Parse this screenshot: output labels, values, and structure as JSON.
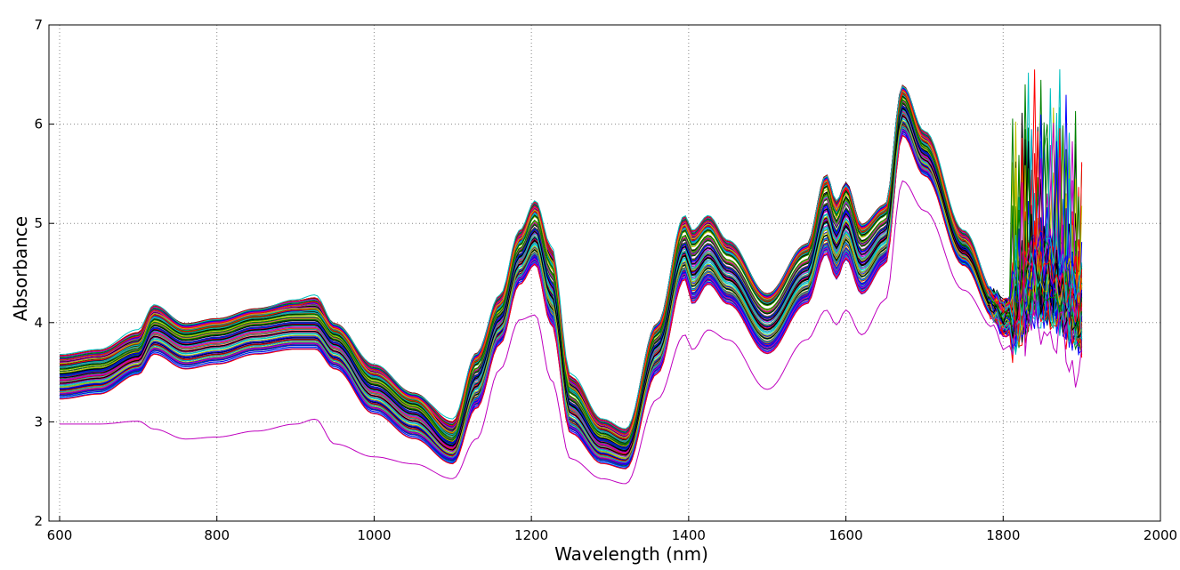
{
  "chart_data": {
    "type": "line",
    "title": "",
    "xlabel": "Wavelength (nm)",
    "ylabel": "Absorbance",
    "xlim": [
      600,
      2000
    ],
    "ylim": [
      2,
      7
    ],
    "x_ticks": [
      600,
      800,
      1000,
      1200,
      1400,
      1600,
      1800,
      2000
    ],
    "y_ticks": [
      2,
      3,
      4,
      5,
      6,
      7
    ],
    "x_tick_labels": [
      "600",
      "800",
      "1000",
      "1200",
      "1400",
      "1600",
      "1800",
      "2000"
    ],
    "y_tick_labels": [
      "2",
      "3",
      "4",
      "5",
      "6",
      "7"
    ],
    "grid": true,
    "legend": "none",
    "series_count": 180,
    "colors": [
      "#0000ff",
      "#008000",
      "#ff0000",
      "#00bfbf",
      "#bf00bf",
      "#bfbf00",
      "#000000"
    ],
    "wavelength_nm": [
      600,
      650,
      700,
      720,
      760,
      800,
      850,
      900,
      925,
      950,
      1000,
      1050,
      1100,
      1130,
      1160,
      1185,
      1205,
      1225,
      1250,
      1290,
      1320,
      1360,
      1395,
      1405,
      1425,
      1450,
      1500,
      1550,
      1575,
      1588,
      1600,
      1620,
      1650,
      1672,
      1700,
      1750,
      1790,
      1800,
      1850,
      1900
    ],
    "representative_series": [
      {
        "values": [
          3.55,
          3.6,
          3.75,
          4.05,
          3.9,
          3.95,
          4.05,
          4.1,
          4.1,
          3.9,
          3.45,
          3.2,
          2.85,
          3.6,
          4.15,
          4.8,
          5.1,
          4.6,
          3.3,
          2.9,
          2.8,
          3.9,
          4.95,
          4.8,
          4.95,
          4.7,
          4.2,
          4.7,
          5.4,
          5.1,
          5.35,
          4.9,
          5.1,
          6.3,
          5.8,
          4.8,
          4.2,
          4.1,
          4.5,
          4.2
        ]
      },
      {
        "values": [
          3.25,
          3.3,
          3.5,
          3.7,
          3.55,
          3.6,
          3.7,
          3.75,
          3.75,
          3.55,
          3.1,
          2.85,
          2.6,
          3.15,
          3.8,
          4.4,
          4.6,
          4.0,
          2.9,
          2.6,
          2.55,
          3.5,
          4.45,
          4.2,
          4.4,
          4.2,
          3.7,
          4.2,
          4.7,
          4.45,
          4.65,
          4.3,
          4.6,
          5.9,
          5.5,
          4.6,
          4.05,
          3.9,
          4.3,
          4.0
        ]
      },
      {
        "values": [
          2.95,
          2.95,
          2.98,
          2.9,
          2.8,
          2.82,
          2.88,
          2.95,
          3.0,
          2.75,
          2.62,
          2.55,
          2.4,
          2.8,
          3.5,
          4.0,
          4.05,
          3.4,
          2.6,
          2.4,
          2.35,
          3.2,
          3.85,
          3.7,
          3.9,
          3.8,
          3.3,
          3.8,
          4.1,
          3.95,
          4.1,
          3.85,
          4.2,
          5.4,
          5.1,
          4.3,
          3.9,
          3.75,
          4.1,
          3.6
        ]
      },
      {
        "values": [
          3.7,
          3.75,
          3.95,
          4.2,
          4.0,
          4.05,
          4.15,
          4.25,
          4.3,
          4.0,
          3.6,
          3.3,
          3.05,
          3.7,
          4.3,
          4.95,
          5.25,
          4.8,
          3.5,
          3.05,
          2.95,
          4.0,
          5.1,
          4.95,
          5.1,
          4.85,
          4.3,
          4.8,
          5.5,
          5.25,
          5.4,
          5.0,
          5.2,
          6.4,
          5.95,
          4.95,
          4.3,
          4.2,
          4.7,
          4.4
        ]
      }
    ]
  }
}
